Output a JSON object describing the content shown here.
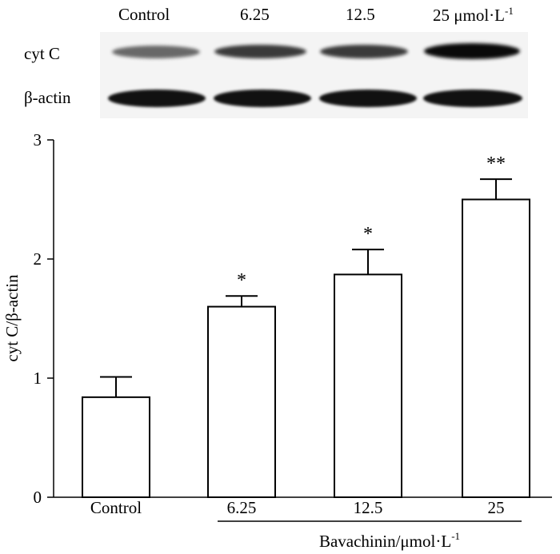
{
  "blot": {
    "lane_labels": [
      "Control",
      "6.25",
      "12.5",
      "25 μmol·L"
    ],
    "unit_superscript": "-1",
    "row_labels": {
      "cytc": "cyt C",
      "actin": "β-actin"
    }
  },
  "chart_data": {
    "type": "bar",
    "categories": [
      "Control",
      "6.25",
      "12.5",
      "25"
    ],
    "values": [
      0.84,
      1.6,
      1.87,
      2.5
    ],
    "errors": [
      0.17,
      0.09,
      0.21,
      0.17
    ],
    "significance": [
      "",
      "*",
      "*",
      "**"
    ],
    "ylabel": "cyt C/β-actin",
    "xlabel": "Bavachinin/μmol·L",
    "xlabel_superscript": "-1",
    "ylim": [
      0,
      3
    ],
    "yticks": [
      "0",
      "1",
      "2",
      "3"
    ],
    "ytick_values": [
      0,
      1,
      2,
      3
    ],
    "bar_fill": "#ffffff",
    "bar_stroke": "#000000"
  }
}
